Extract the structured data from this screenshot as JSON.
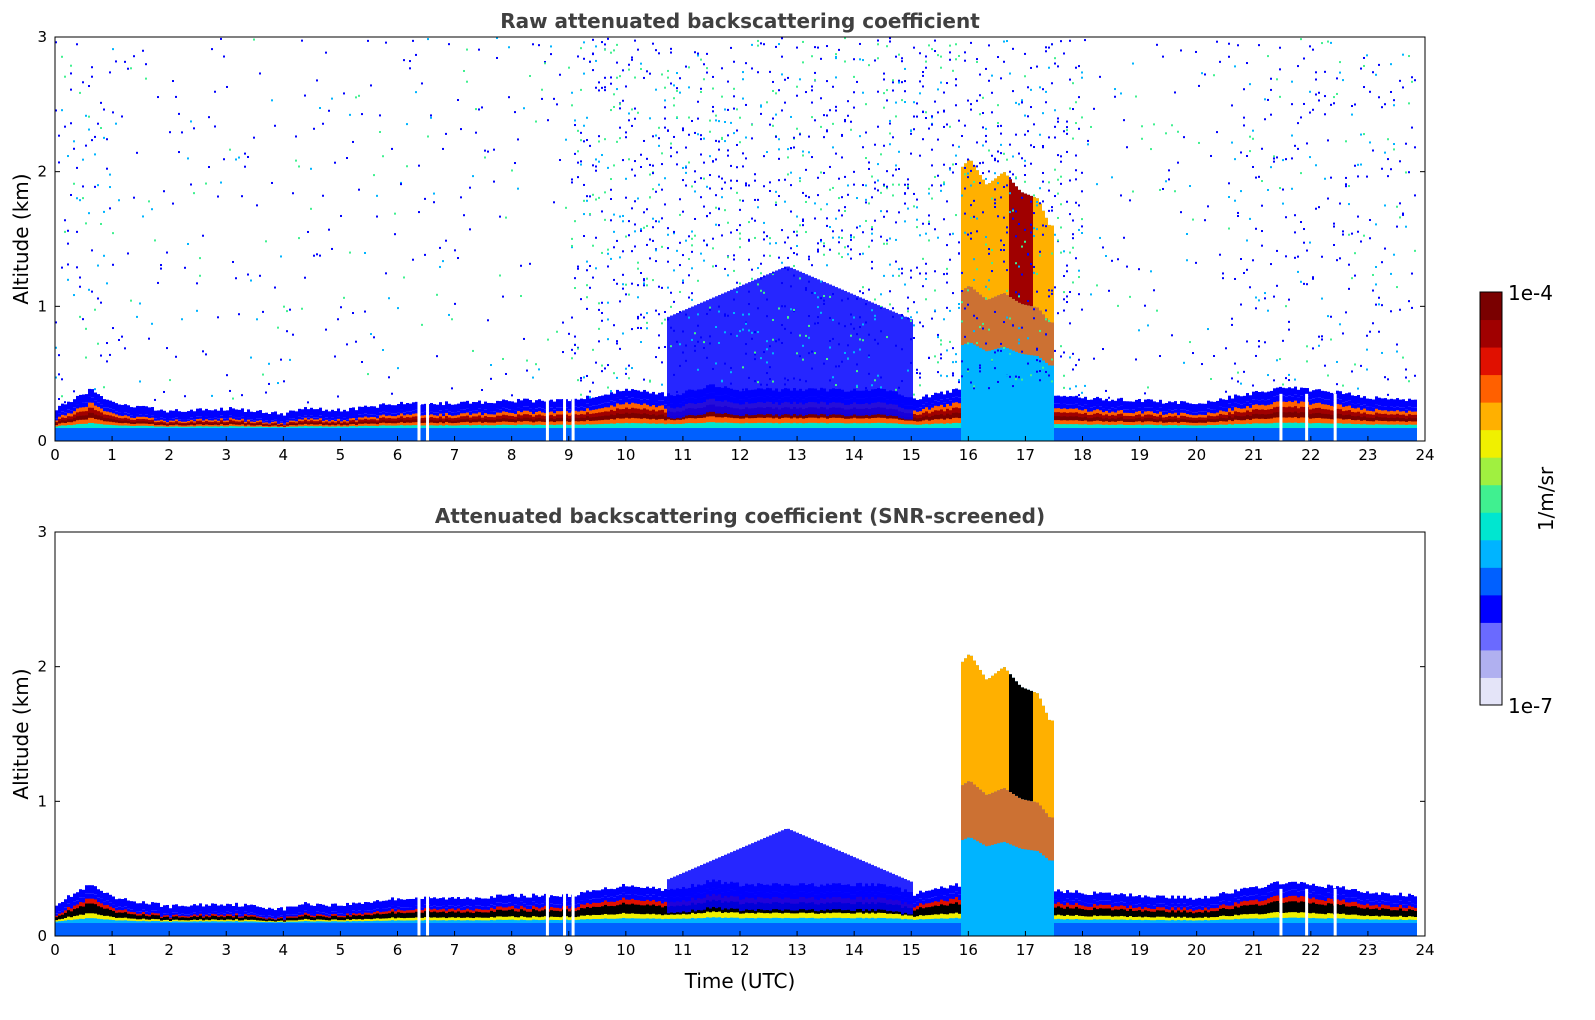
{
  "chart_data": [
    {
      "type": "heatmap",
      "title": "Raw attenuated backscattering coefficient",
      "xlabel": "",
      "ylabel": "Altitude (km)",
      "xlim": [
        0,
        24
      ],
      "ylim": [
        0,
        3
      ],
      "xticks": [
        "0",
        "1",
        "2",
        "3",
        "4",
        "5",
        "6",
        "7",
        "8",
        "9",
        "10",
        "11",
        "12",
        "13",
        "14",
        "15",
        "16",
        "17",
        "18",
        "19",
        "20",
        "21",
        "22",
        "23",
        "24"
      ],
      "yticks": [
        "0",
        "1",
        "2",
        "3"
      ],
      "screened": false,
      "blh_km": [
        [
          0,
          0.18
        ],
        [
          0.6,
          0.32
        ],
        [
          1,
          0.22
        ],
        [
          2,
          0.16
        ],
        [
          3,
          0.18
        ],
        [
          4,
          0.14
        ],
        [
          4.3,
          0.18
        ],
        [
          5,
          0.17
        ],
        [
          6,
          0.22
        ],
        [
          7,
          0.22
        ],
        [
          8,
          0.24
        ],
        [
          9,
          0.24
        ],
        [
          10,
          0.32
        ],
        [
          10.8,
          0.28
        ],
        [
          11.5,
          0.35
        ],
        [
          12,
          0.32
        ],
        [
          14.6,
          0.32
        ],
        [
          15,
          0.25
        ],
        [
          15.8,
          0.32
        ],
        [
          17.5,
          0.28
        ],
        [
          18,
          0.26
        ],
        [
          19,
          0.24
        ],
        [
          20,
          0.22
        ],
        [
          20.5,
          0.26
        ],
        [
          21,
          0.3
        ],
        [
          21.5,
          0.34
        ],
        [
          22.5,
          0.3
        ],
        [
          23,
          0.26
        ],
        [
          23.85,
          0.24
        ]
      ],
      "cloud": [
        [
          15.8,
          2.0
        ],
        [
          16.0,
          2.1
        ],
        [
          16.3,
          1.9
        ],
        [
          16.6,
          2.0
        ],
        [
          16.9,
          1.85
        ],
        [
          17.2,
          1.8
        ],
        [
          17.4,
          1.6
        ]
      ]
    },
    {
      "type": "heatmap",
      "title": "Attenuated backscattering coefficient (SNR-screened)",
      "xlabel": "Time (UTC)",
      "ylabel": "Altitude (km)",
      "xlim": [
        0,
        24
      ],
      "ylim": [
        0,
        3
      ],
      "xticks": [
        "0",
        "1",
        "2",
        "3",
        "4",
        "5",
        "6",
        "7",
        "8",
        "9",
        "10",
        "11",
        "12",
        "13",
        "14",
        "15",
        "16",
        "17",
        "18",
        "19",
        "20",
        "21",
        "22",
        "23",
        "24"
      ],
      "yticks": [
        "0",
        "1",
        "2",
        "3"
      ],
      "screened": true
    }
  ],
  "colorbar": {
    "label": "1/m/sr",
    "max_label": "1e-4",
    "min_label": "1e-7",
    "range": [
      1e-07,
      0.0001
    ],
    "scale": "log",
    "colors": [
      "#e4e4f8",
      "#b0b0f0",
      "#6a6aff",
      "#0000ff",
      "#0060ff",
      "#00b4ff",
      "#00e6d0",
      "#40f090",
      "#a0f040",
      "#f0f000",
      "#ffb000",
      "#ff6000",
      "#e01000",
      "#a00000",
      "#7a0000"
    ]
  }
}
